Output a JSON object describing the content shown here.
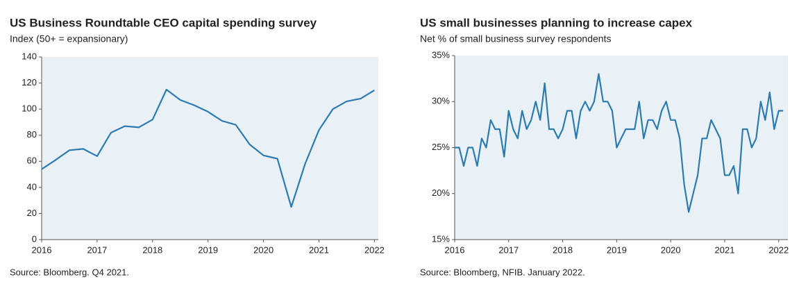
{
  "chart_data": [
    {
      "type": "line",
      "title": "US Business Roundtable CEO capital spending survey",
      "subtitle": "Index (50+ = expansionary)",
      "source": "Source: Bloomberg. Q4 2021.",
      "x": [
        2016,
        2016.25,
        2016.5,
        2016.75,
        2017,
        2017.25,
        2017.5,
        2017.75,
        2018,
        2018.25,
        2018.5,
        2018.75,
        2019,
        2019.25,
        2019.5,
        2019.75,
        2020,
        2020.25,
        2020.5,
        2020.75,
        2021,
        2021.25,
        2021.5,
        2021.75,
        2022
      ],
      "series": [
        {
          "name": "CEO capital spending",
          "color": "#2b7bb3",
          "values": [
            54,
            61,
            68.5,
            69.5,
            64,
            82,
            87,
            86,
            92,
            115,
            107,
            103,
            98,
            91,
            88,
            73,
            64.5,
            62,
            25,
            58,
            84,
            100,
            106,
            108,
            114.5
          ]
        }
      ],
      "xlim": [
        2016,
        2022.07
      ],
      "xticks": [
        2016,
        2017,
        2018,
        2019,
        2020,
        2021,
        2022
      ],
      "ylim": [
        0,
        140
      ],
      "yticks": [
        0,
        20,
        40,
        60,
        80,
        100,
        120,
        140
      ]
    },
    {
      "type": "line",
      "title": "US small businesses planning to increase capex",
      "subtitle": "Net % of small business survey respondents",
      "source": "Source: Bloomberg, NFIB. January 2022.",
      "x": [
        2016,
        2016.083,
        2016.167,
        2016.25,
        2016.333,
        2016.417,
        2016.5,
        2016.583,
        2016.667,
        2016.75,
        2016.833,
        2016.917,
        2017,
        2017.083,
        2017.167,
        2017.25,
        2017.333,
        2017.417,
        2017.5,
        2017.583,
        2017.667,
        2017.75,
        2017.833,
        2017.917,
        2018,
        2018.083,
        2018.167,
        2018.25,
        2018.333,
        2018.417,
        2018.5,
        2018.583,
        2018.667,
        2018.75,
        2018.833,
        2018.917,
        2019,
        2019.083,
        2019.167,
        2019.25,
        2019.333,
        2019.417,
        2019.5,
        2019.583,
        2019.667,
        2019.75,
        2019.833,
        2019.917,
        2020,
        2020.083,
        2020.167,
        2020.25,
        2020.333,
        2020.417,
        2020.5,
        2020.583,
        2020.667,
        2020.75,
        2020.833,
        2020.917,
        2021,
        2021.083,
        2021.167,
        2021.25,
        2021.333,
        2021.417,
        2021.5,
        2021.583,
        2021.667,
        2021.75,
        2021.833,
        2021.917,
        2022,
        2022.083
      ],
      "series": [
        {
          "name": "Planning to increase capex",
          "color": "#2b7bb3",
          "values": [
            25,
            25,
            23,
            25,
            25,
            23,
            26,
            25,
            28,
            27,
            27,
            24,
            29,
            27,
            26,
            29,
            27,
            28,
            30,
            28,
            32,
            27,
            27,
            26,
            27,
            29,
            29,
            26,
            29,
            30,
            29,
            30,
            33,
            30,
            30,
            29,
            25,
            26,
            27,
            27,
            27,
            30,
            26,
            28,
            28,
            27,
            29,
            30,
            28,
            28,
            26,
            21,
            18,
            20,
            22,
            26,
            26,
            28,
            27,
            26,
            22,
            22,
            23,
            20,
            27,
            27,
            25,
            26,
            30,
            28,
            31,
            27,
            29,
            29
          ]
        }
      ],
      "xlim": [
        2016,
        2022.17
      ],
      "xticks": [
        2016,
        2017,
        2018,
        2019,
        2020,
        2021,
        2022
      ],
      "ylim": [
        15,
        35
      ],
      "yticks": [
        {
          "value": 15,
          "label": "15%"
        },
        {
          "value": 20,
          "label": "20%"
        },
        {
          "value": 25,
          "label": "25%"
        },
        {
          "value": 30,
          "label": "30%"
        },
        {
          "value": 35,
          "label": "35%"
        }
      ]
    }
  ]
}
